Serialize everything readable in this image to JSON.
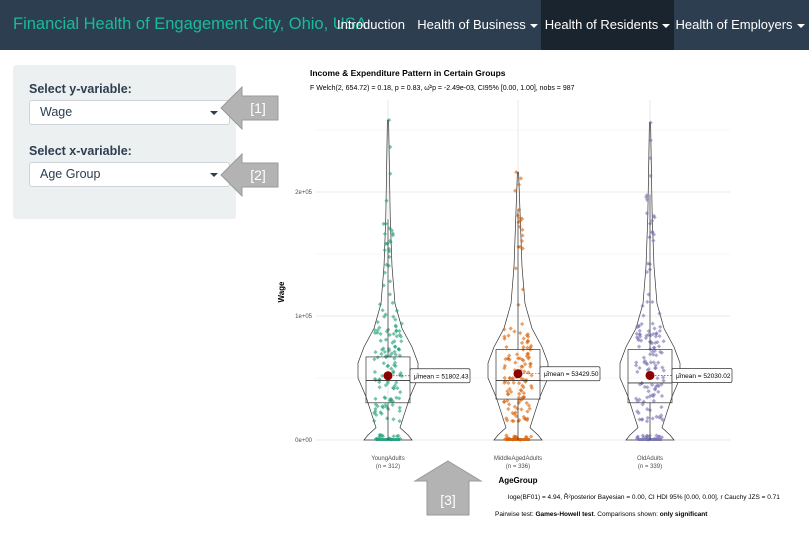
{
  "navbar": {
    "brand": "Financial Health of Engagement City, Ohio, USA",
    "items": [
      {
        "label": "Introduction"
      },
      {
        "label": "Health of Business"
      },
      {
        "label": "Health of Residents"
      },
      {
        "label": "Health of Employers"
      }
    ]
  },
  "sidebar": {
    "y_label": "Select y-variable:",
    "y_value": "Wage",
    "x_label": "Select x-variable:",
    "x_value": "Age Group"
  },
  "callouts": [
    "[1]",
    "[2]",
    "[3]"
  ],
  "stats_top": "F Welch(2, 654.72) = 0.18, p = 0.83, ω̂²p = -2.49e-03, CI95% [0.00, 1.00], nobs = 987",
  "stats_bottom": "loge(BF01) = 4.94, R̂²posterior Bayesian = 0.00, CI HDI 95% [0.00, 0.00], r Cauchy JZS = 0.71",
  "pairwise": {
    "prefix": "Pairwise test: ",
    "test": "Games-Howell test",
    "middle": ". Comparisons shown: ",
    "shown": "only significant"
  },
  "colors": {
    "navbar_bg": "#2c3e50",
    "brand": "#18bc9c",
    "active_nav_bg": "#1a242f",
    "sidebar_bg": "#ecf0f1",
    "young": "#1b9e77",
    "middle": "#d95f02",
    "old": "#7570b3",
    "mean_dot": "#8b0000",
    "callout_arrow": "#b3b3b3"
  },
  "chart_data": {
    "type": "violin-box-scatter",
    "title": "Income & Expenditure Pattern in Certain Groups",
    "xlabel": "AgeGroup",
    "ylabel": "Wage",
    "y_ticks": [
      "0e+00",
      "1e+05",
      "2e+05"
    ],
    "ylim": [
      0,
      260000
    ],
    "grid": true,
    "categories": [
      {
        "name": "YoungAdults",
        "n_label": "(n = 312)",
        "mean": 51802.43,
        "mean_label": "51802.43",
        "median": 48000,
        "q1": 30000,
        "q3": 67000,
        "whisker_low": 0,
        "whisker_high": 178000,
        "max": 258000
      },
      {
        "name": "MiddleAgedAdults",
        "n_label": "(n = 336)",
        "mean": 53429.5,
        "mean_label": "53429.50",
        "median": 48000,
        "q1": 33000,
        "q3": 73000,
        "whisker_low": 0,
        "whisker_high": 186000,
        "max": 216000
      },
      {
        "name": "OldAdults",
        "n_label": "(n = 339)",
        "mean": 52030.02,
        "mean_label": "52030.02",
        "median": 46000,
        "q1": 30000,
        "q3": 73000,
        "whisker_low": 0,
        "whisker_high": 198000,
        "max": 256000
      }
    ]
  }
}
